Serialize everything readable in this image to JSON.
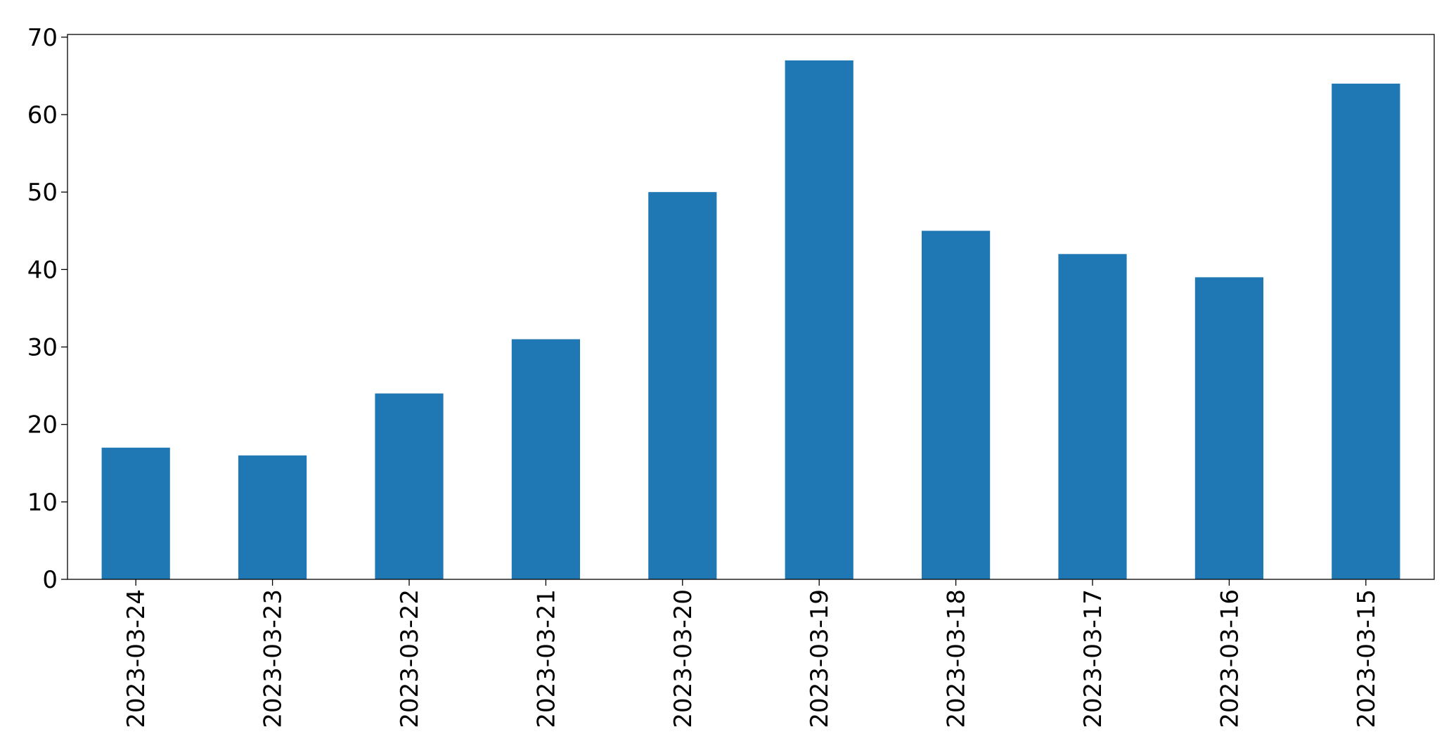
{
  "chart_data": {
    "type": "bar",
    "categories": [
      "2023-03-24",
      "2023-03-23",
      "2023-03-22",
      "2023-03-21",
      "2023-03-20",
      "2023-03-19",
      "2023-03-18",
      "2023-03-17",
      "2023-03-16",
      "2023-03-15"
    ],
    "values": [
      17,
      16,
      24,
      31,
      50,
      67,
      45,
      42,
      39,
      64
    ],
    "color": "#1f77b4",
    "ylim": [
      0,
      70.35
    ],
    "yticks": [
      0,
      10,
      20,
      30,
      40,
      50,
      60,
      70
    ],
    "grid": false
  }
}
